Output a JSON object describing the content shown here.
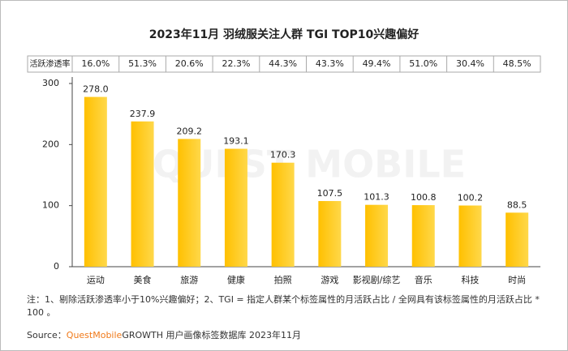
{
  "chart_data": {
    "type": "bar",
    "title": "2023年11月 羽绒服关注人群 TGI TOP10兴趣偏好",
    "watermark": "QUEST MOBILE",
    "penetration": {
      "label": "活跃渗透率",
      "values": [
        16.0,
        51.3,
        20.6,
        22.3,
        44.3,
        43.3,
        49.4,
        51.0,
        30.4,
        48.5
      ],
      "value_labels": [
        "16.0%",
        "51.3%",
        "20.6%",
        "22.3%",
        "44.3%",
        "43.3%",
        "49.4%",
        "51.0%",
        "30.4%",
        "48.5%"
      ]
    },
    "categories": [
      "运动",
      "美食",
      "旅游",
      "健康",
      "拍照",
      "游戏",
      "影视剧/综艺",
      "音乐",
      "科技",
      "时尚"
    ],
    "values": [
      278.0,
      237.9,
      209.2,
      193.1,
      170.3,
      107.5,
      101.3,
      100.8,
      100.2,
      88.5
    ],
    "value_labels": [
      "278.0",
      "237.9",
      "209.2",
      "193.1",
      "170.3",
      "107.5",
      "101.3",
      "100.8",
      "100.2",
      "88.5"
    ],
    "color": "#FFC000",
    "ylim": [
      0,
      300
    ],
    "yticks": [
      0,
      100,
      200,
      300
    ],
    "grid": false,
    "note": "注：1、剔除活跃渗透率小于10%兴趣偏好；2、TGI = 指定人群某个标签属性的月活跃占比 / 全网具有该标签属性的月活跃占比 * 100 。",
    "source": {
      "prefix": "Source：",
      "brand": "QuestMobile",
      "text": "GROWTH 用户画像标签数据库 2023年11月"
    }
  }
}
